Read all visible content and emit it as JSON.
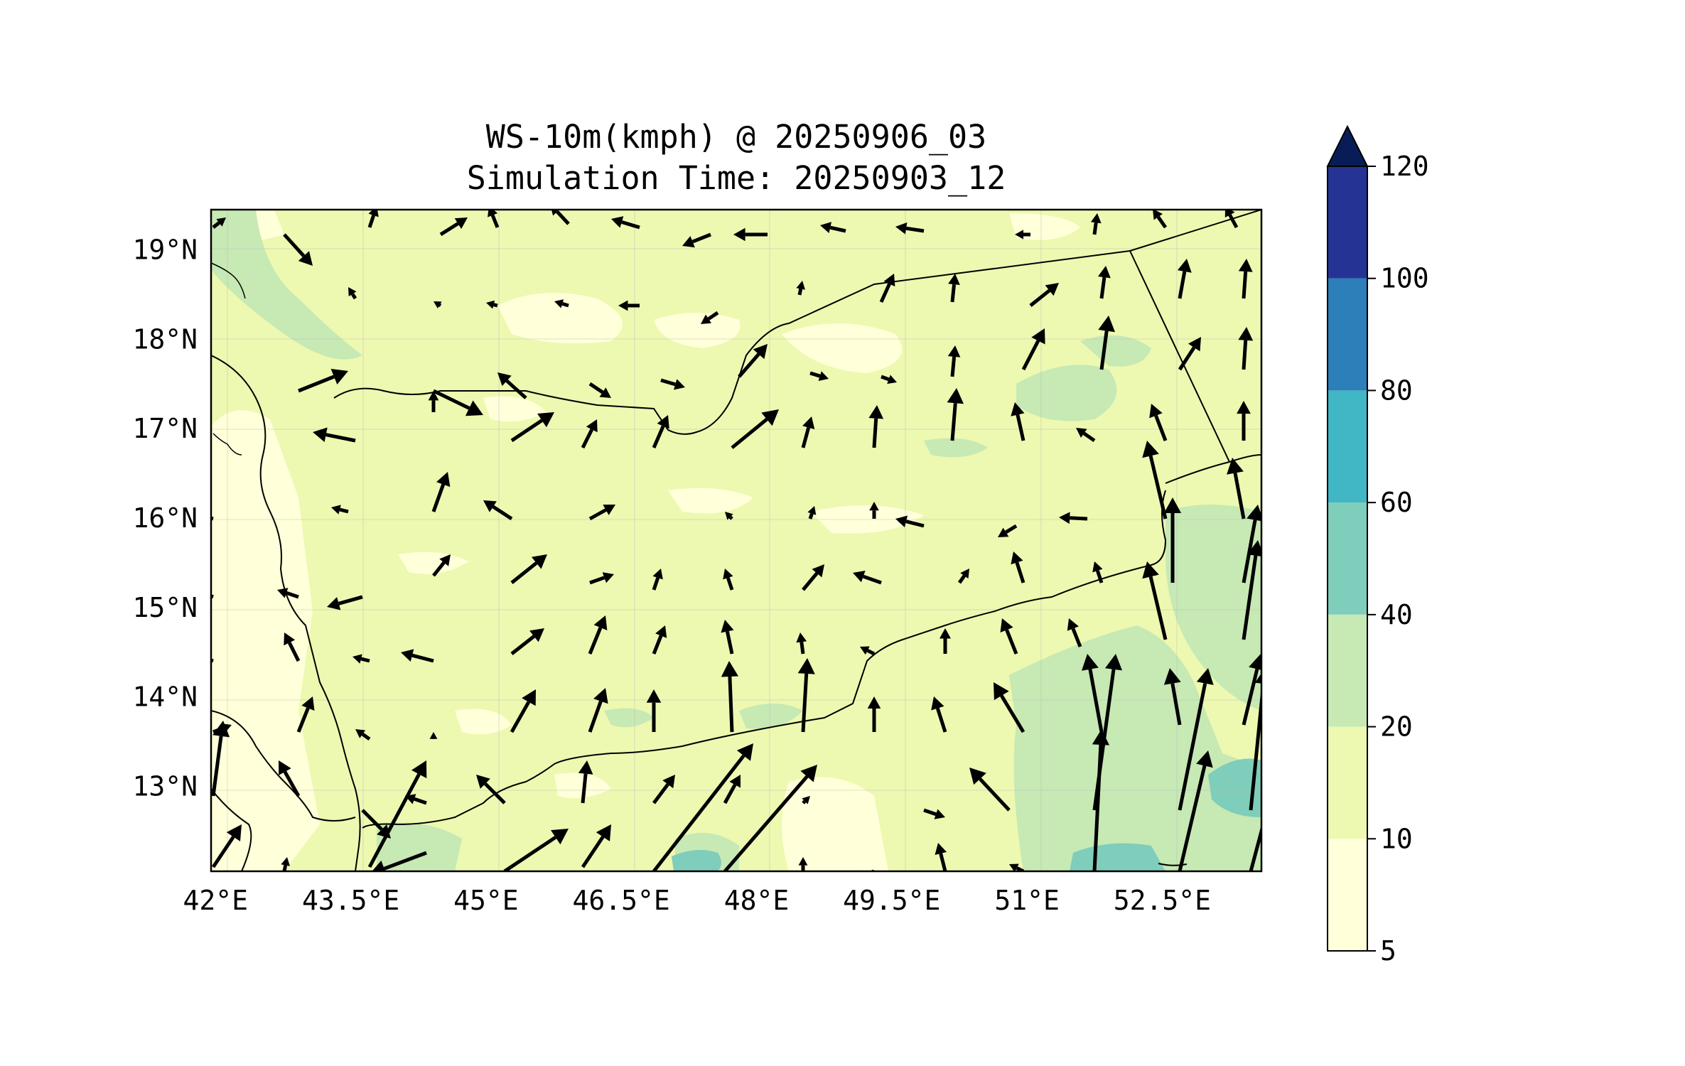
{
  "title": {
    "line1": "WS-10m(kmph) @ 20250906_03",
    "line2": "Simulation Time: 20250903_12"
  },
  "map": {
    "lon_range": [
      41.95,
      53.6
    ],
    "lat_range": [
      12.05,
      19.45
    ],
    "lon_ticks": [
      {
        "value": 42.0,
        "label": "42°E"
      },
      {
        "value": 43.5,
        "label": "43.5°E"
      },
      {
        "value": 45.0,
        "label": "45°E"
      },
      {
        "value": 46.5,
        "label": "46.5°E"
      },
      {
        "value": 48.0,
        "label": "48°E"
      },
      {
        "value": 49.5,
        "label": "49.5°E"
      },
      {
        "value": 51.0,
        "label": "51°E"
      },
      {
        "value": 52.5,
        "label": "52.5°E"
      }
    ],
    "lat_ticks": [
      {
        "value": 19,
        "label": "19°N"
      },
      {
        "value": 18,
        "label": "18°N"
      },
      {
        "value": 17,
        "label": "17°N"
      },
      {
        "value": 16,
        "label": "16°N"
      },
      {
        "value": 15,
        "label": "15°N"
      },
      {
        "value": 14,
        "label": "14°N"
      },
      {
        "value": 13,
        "label": "13°N"
      }
    ],
    "gridlines": true,
    "fill_colors": {
      "5-10": "#ffffd9",
      "10-20": "#edf8b1",
      "20-40": "#c7e9b4",
      "40-60": "#7fcdbb"
    },
    "vector_color": "#000000",
    "boundary_color": "#000000"
  },
  "colorbar": {
    "levels": [
      {
        "value": 5,
        "label": "5"
      },
      {
        "value": 10,
        "label": "10"
      },
      {
        "value": 20,
        "label": "20"
      },
      {
        "value": 40,
        "label": "40"
      },
      {
        "value": 60,
        "label": "60"
      },
      {
        "value": 80,
        "label": "80"
      },
      {
        "value": 100,
        "label": "100"
      },
      {
        "value": 120,
        "label": "120"
      }
    ],
    "colors": [
      "#ffffd9",
      "#edf8b1",
      "#c7e9b4",
      "#7fcdbb",
      "#41b6c4",
      "#2c7fb8",
      "#253494"
    ],
    "extend_color": "#081d58",
    "extend": "max"
  }
}
